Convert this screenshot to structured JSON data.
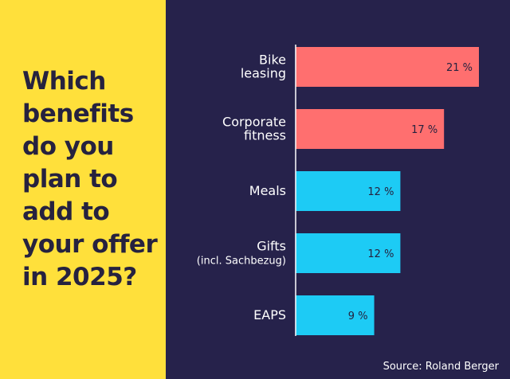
{
  "question": "Which benefits do you plan to add to your offer in 2025?",
  "source": "Source: Roland Berger",
  "colors": {
    "left_bg": "#FFE03B",
    "right_bg": "#26224B",
    "text_dark": "#26223F",
    "bar_highlight": "#FF6F6F",
    "bar_default": "#1DCBF5",
    "axis": "#FFFFFF"
  },
  "chart_data": {
    "type": "bar",
    "orientation": "horizontal",
    "categories": [
      [
        "Bike",
        "leasing"
      ],
      [
        "Corporate",
        "fitness"
      ],
      [
        "Meals"
      ],
      [
        "Gifts",
        "(incl. Sachbezug)"
      ],
      [
        "EAPS"
      ]
    ],
    "values": [
      21,
      17,
      12,
      12,
      9
    ],
    "value_labels": [
      "21 %",
      "17 %",
      "12 %",
      "12 %",
      "9 %"
    ],
    "bar_colors": [
      "#FF6F6F",
      "#FF6F6F",
      "#1DCBF5",
      "#1DCBF5",
      "#1DCBF5"
    ],
    "xlim": [
      0,
      21
    ],
    "grid": false
  }
}
